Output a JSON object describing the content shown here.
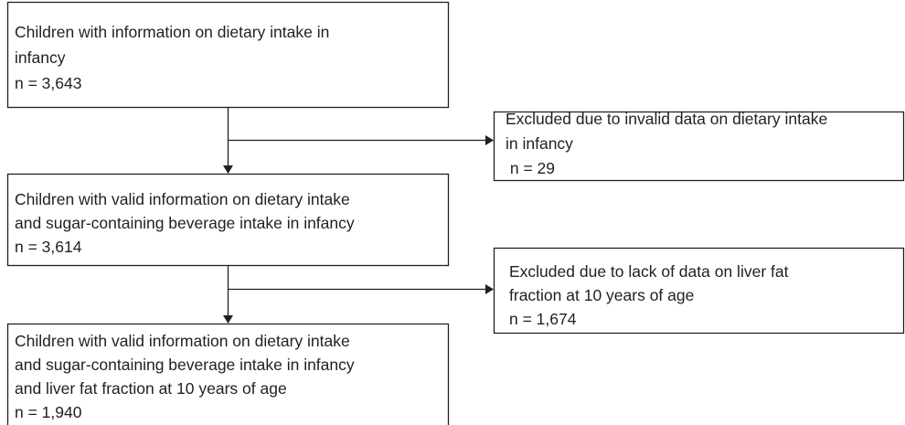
{
  "nodes": [
    {
      "lines": [
        "Children with information on dietary intake in",
        "infancy",
        "n = 3,643"
      ]
    },
    {
      "lines": [
        "Excluded due to invalid data on dietary intake",
        "in infancy",
        " n = 29"
      ]
    },
    {
      "lines": [
        "Children with valid information on dietary intake",
        "and sugar-containing beverage intake in infancy",
        "n = 3,614"
      ]
    },
    {
      "lines": [
        "Excluded due to lack of data on liver fat",
        "fraction at 10 years of age",
        "n = 1,674"
      ]
    },
    {
      "lines": [
        "Children with valid information on dietary intake",
        "and sugar-containing beverage intake in infancy",
        "and liver fat fraction at 10 years of age",
        "n = 1,940"
      ]
    }
  ]
}
